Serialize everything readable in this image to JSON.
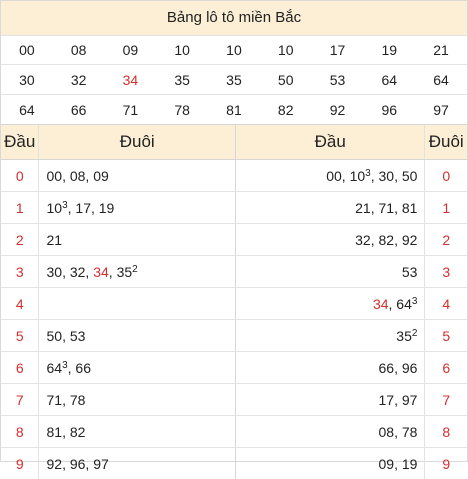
{
  "title": "Bảng lô tô miền Bắc",
  "numbers": [
    [
      "00",
      "08",
      "09",
      "10",
      "10",
      "10",
      "17",
      "19",
      "21"
    ],
    [
      "30",
      "32",
      "34",
      "35",
      "35",
      "50",
      "53",
      "64",
      "64"
    ],
    [
      "64",
      "66",
      "71",
      "78",
      "81",
      "82",
      "92",
      "96",
      "97"
    ]
  ],
  "highlight": [
    "34"
  ],
  "colors": {
    "header_bg": "#fcefd6",
    "accent_red": "#d32f2f",
    "border": "#d9d9d9"
  },
  "loto_table": {
    "headers": {
      "dau": "Đầu",
      "duoi": "Đuôi",
      "dau_right": "Đầu",
      "duoi_right": "Đuôi"
    },
    "rows": [
      {
        "digit": "0",
        "duoi": [
          {
            "n": "00"
          },
          {
            "n": "08"
          },
          {
            "n": "09"
          }
        ],
        "dau": [
          {
            "n": "00"
          },
          {
            "n": "10",
            "sup": "3"
          },
          {
            "n": "30"
          },
          {
            "n": "50"
          }
        ]
      },
      {
        "digit": "1",
        "duoi": [
          {
            "n": "10",
            "sup": "3"
          },
          {
            "n": "17"
          },
          {
            "n": "19"
          }
        ],
        "dau": [
          {
            "n": "21"
          },
          {
            "n": "71"
          },
          {
            "n": "81"
          }
        ]
      },
      {
        "digit": "2",
        "duoi": [
          {
            "n": "21"
          }
        ],
        "dau": [
          {
            "n": "32"
          },
          {
            "n": "82"
          },
          {
            "n": "92"
          }
        ]
      },
      {
        "digit": "3",
        "duoi": [
          {
            "n": "30"
          },
          {
            "n": "32"
          },
          {
            "n": "34",
            "red": true
          },
          {
            "n": "35",
            "sup": "2"
          }
        ],
        "dau": [
          {
            "n": "53"
          }
        ]
      },
      {
        "digit": "4",
        "duoi": [],
        "dau": [
          {
            "n": "34",
            "red": true
          },
          {
            "n": "64",
            "sup": "3"
          }
        ]
      },
      {
        "digit": "5",
        "duoi": [
          {
            "n": "50"
          },
          {
            "n": "53"
          }
        ],
        "dau": [
          {
            "n": "35",
            "sup": "2"
          }
        ]
      },
      {
        "digit": "6",
        "duoi": [
          {
            "n": "64",
            "sup": "3"
          },
          {
            "n": "66"
          }
        ],
        "dau": [
          {
            "n": "66"
          },
          {
            "n": "96"
          }
        ]
      },
      {
        "digit": "7",
        "duoi": [
          {
            "n": "71"
          },
          {
            "n": "78"
          }
        ],
        "dau": [
          {
            "n": "17"
          },
          {
            "n": "97"
          }
        ]
      },
      {
        "digit": "8",
        "duoi": [
          {
            "n": "81"
          },
          {
            "n": "82"
          }
        ],
        "dau": [
          {
            "n": "08"
          },
          {
            "n": "78"
          }
        ]
      },
      {
        "digit": "9",
        "duoi": [
          {
            "n": "92"
          },
          {
            "n": "96"
          },
          {
            "n": "97"
          }
        ],
        "dau": [
          {
            "n": "09"
          },
          {
            "n": "19"
          }
        ]
      }
    ]
  }
}
